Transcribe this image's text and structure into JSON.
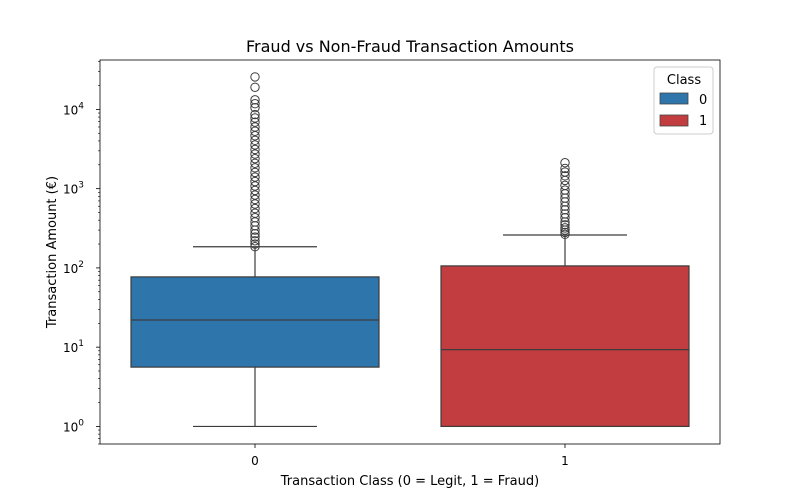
{
  "chart_data": {
    "type": "boxplot",
    "title": "Fraud vs Non-Fraud Transaction Amounts",
    "xlabel": "Transaction Class (0 = Legit, 1 = Fraud)",
    "ylabel": "Transaction Amount (€)",
    "yscale": "log",
    "ylim": [
      0.6,
      42000
    ],
    "y_ticks": [
      {
        "base": "10",
        "exp": "0",
        "value": 1
      },
      {
        "base": "10",
        "exp": "1",
        "value": 10
      },
      {
        "base": "10",
        "exp": "2",
        "value": 100
      },
      {
        "base": "10",
        "exp": "3",
        "value": 1000
      },
      {
        "base": "10",
        "exp": "4",
        "value": 10000
      }
    ],
    "categories": [
      "0",
      "1"
    ],
    "legend": {
      "title": "Class",
      "position": "top-right",
      "entries": [
        {
          "label": "0",
          "color": "#2e75ac"
        },
        {
          "label": "1",
          "color": "#c23d3f"
        }
      ]
    },
    "boxes": [
      {
        "category": "0",
        "color": "#2e75ac",
        "whisker_low": 1,
        "q1": 5.6,
        "median": 22,
        "q3": 77,
        "whisker_high": 185,
        "outliers": [
          185,
          200,
          220,
          245,
          270,
          300,
          340,
          380,
          430,
          490,
          560,
          640,
          730,
          830,
          950,
          1080,
          1230,
          1400,
          1600,
          1830,
          2090,
          2390,
          2730,
          3120,
          3560,
          4070,
          4650,
          5300,
          6000,
          6900,
          7800,
          8600,
          10500,
          11800,
          13200,
          19000,
          25700
        ]
      },
      {
        "category": "1",
        "color": "#c23d3f",
        "whisker_low": 1,
        "q1": 1,
        "median": 9.3,
        "q3": 106,
        "whisker_high": 260,
        "outliers": [
          265,
          280,
          300,
          320,
          350,
          380,
          430,
          480,
          540,
          600,
          680,
          760,
          860,
          960,
          1100,
          1270,
          1450,
          1620,
          1800,
          2125
        ]
      }
    ]
  }
}
